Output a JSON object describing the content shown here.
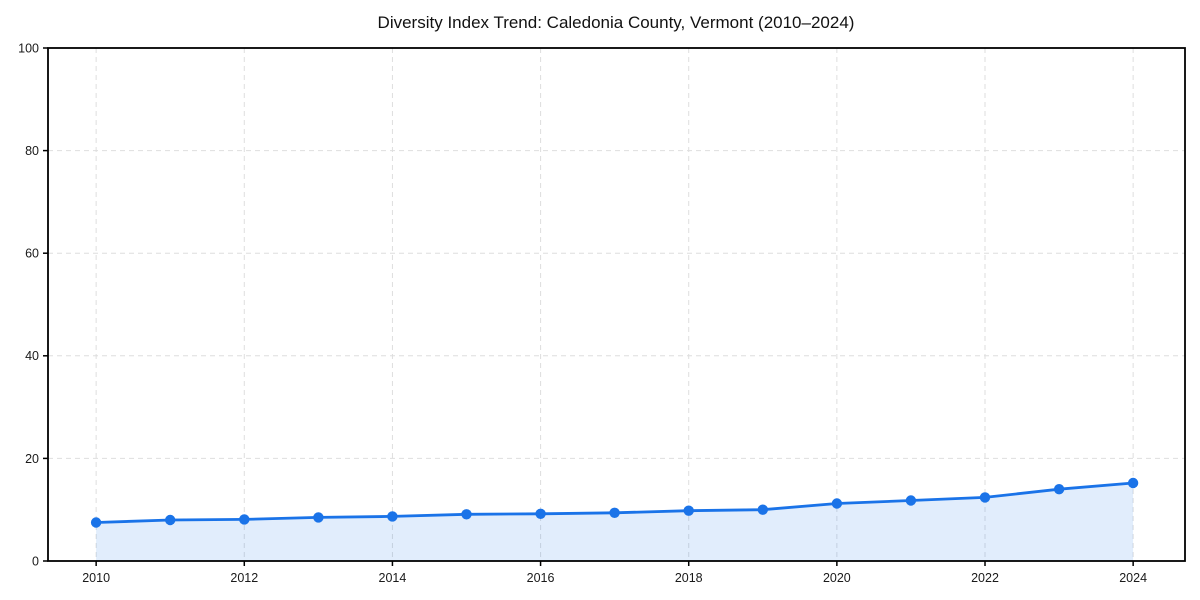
{
  "page": {
    "background": "#ffffff"
  },
  "chart_data": {
    "type": "line",
    "title": "Diversity Index Trend: Caledonia County, Vermont (2010–2024)",
    "x": [
      2010,
      2011,
      2012,
      2013,
      2014,
      2015,
      2016,
      2017,
      2018,
      2019,
      2020,
      2021,
      2022,
      2023,
      2024
    ],
    "series": [
      {
        "name": "Diversity Index",
        "values": [
          7.5,
          8.0,
          8.1,
          8.5,
          8.7,
          9.1,
          9.2,
          9.4,
          9.8,
          10.0,
          11.2,
          11.8,
          12.4,
          14.0,
          15.2
        ]
      }
    ],
    "xlabel": "",
    "ylabel": "",
    "xlim": [
      2009.35,
      2024.7
    ],
    "ylim": [
      0,
      100
    ],
    "xticks": [
      2010,
      2012,
      2014,
      2016,
      2018,
      2020,
      2022,
      2024
    ],
    "xticklabels": [
      "2010",
      "2012",
      "2014",
      "2016",
      "2018",
      "2020",
      "2022",
      "2024"
    ],
    "yticks": [
      0,
      20,
      40,
      60,
      80,
      100
    ],
    "yticklabels": [
      "0",
      "20",
      "40",
      "60",
      "80",
      "100"
    ],
    "grid": true,
    "grid_style": "dashed",
    "legend_position": "none",
    "marker": "circle",
    "area_fill": true,
    "colors": {
      "line": "#1a73e8",
      "marker": "#1a73e8",
      "area": "rgba(26,115,232,0.13)",
      "grid": "#dedede",
      "spine": "#000000",
      "tick_text": "#1a1a1a",
      "title_text": "#111111",
      "background": "#ffffff"
    }
  }
}
